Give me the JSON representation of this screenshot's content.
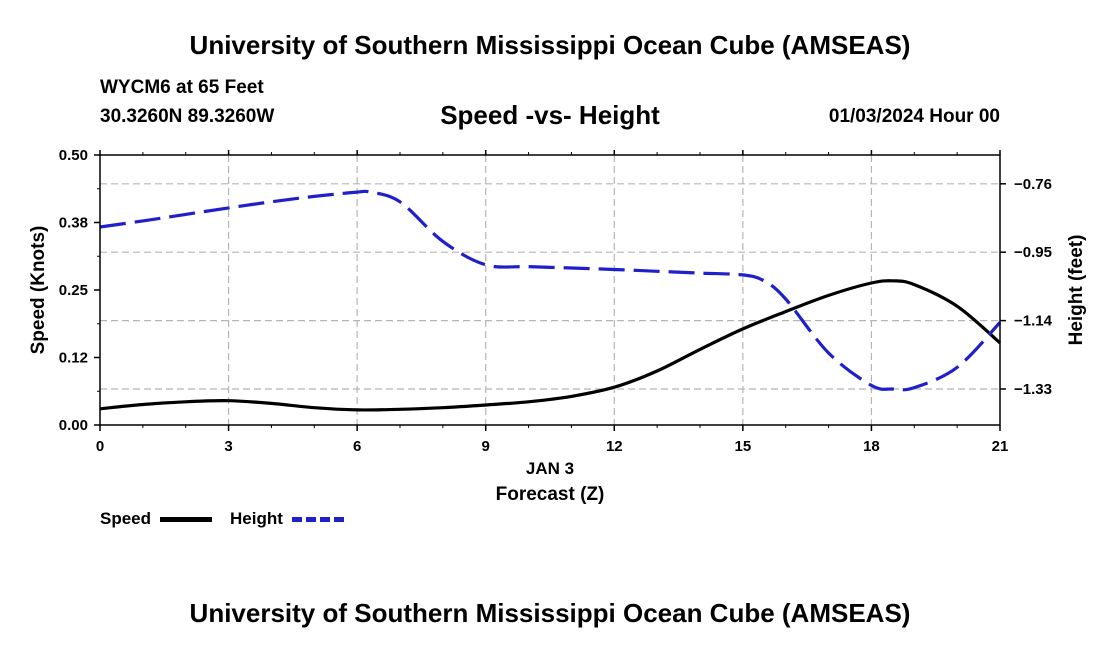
{
  "header": {
    "title": "University of Southern Mississippi Ocean Cube (AMSEAS)",
    "station": "WYCM6 at 65 Feet",
    "coordinates": "30.3260N  89.3260W",
    "date_hour": "01/03/2024 Hour 00"
  },
  "footer": {
    "title": "University of Southern Mississippi Ocean Cube (AMSEAS)"
  },
  "chart_data": {
    "type": "line",
    "title": "Speed -vs- Height",
    "xlabel_date": "JAN 3",
    "xlabel": "Forecast (Z)",
    "ylabel": "Speed (Knots)",
    "y2label": "Height (feet)",
    "xlim": [
      0,
      21
    ],
    "ylim": [
      0,
      0.5
    ],
    "y2lim": [
      -1.43,
      -0.68
    ],
    "x_ticks": [
      0,
      3,
      6,
      9,
      12,
      15,
      18,
      21
    ],
    "x_tick_labels": [
      "0",
      "3",
      "6",
      "9",
      "12",
      "15",
      "18",
      "21"
    ],
    "y_ticks": [
      0,
      0.125,
      0.25,
      0.375,
      0.5
    ],
    "y_tick_labels": [
      "0.00",
      "0.12",
      "0.25",
      "0.38",
      "0.50"
    ],
    "y2_ticks": [
      -0.76,
      -0.95,
      -1.14,
      -1.33
    ],
    "y2_tick_labels": [
      "−0.76",
      "−0.95",
      "−1.14",
      "−1.33"
    ],
    "grid": true,
    "series": [
      {
        "name": "Speed",
        "axis": "left",
        "color": "#000000",
        "dash": "solid",
        "x": [
          0,
          1,
          2,
          3,
          4,
          5,
          6,
          7,
          8,
          9,
          10,
          11,
          12,
          13,
          14,
          15,
          16,
          17,
          18,
          18.5,
          19,
          20,
          21
        ],
        "values": [
          0.03,
          0.038,
          0.043,
          0.045,
          0.04,
          0.032,
          0.028,
          0.029,
          0.032,
          0.037,
          0.043,
          0.053,
          0.07,
          0.1,
          0.14,
          0.178,
          0.21,
          0.24,
          0.263,
          0.267,
          0.26,
          0.22,
          0.152
        ]
      },
      {
        "name": "Height",
        "axis": "right",
        "color": "#1f1fcc",
        "dash": "dashed",
        "x": [
          0,
          1,
          2,
          3,
          4,
          5,
          6,
          6.3,
          7,
          8,
          9,
          10,
          11,
          12,
          13,
          14,
          15,
          15.5,
          16,
          17,
          18,
          18.5,
          19,
          20,
          21
        ],
        "values": [
          -0.88,
          -0.863,
          -0.845,
          -0.827,
          -0.81,
          -0.795,
          -0.783,
          -0.783,
          -0.81,
          -0.92,
          -0.985,
          -0.99,
          -0.994,
          -0.998,
          -1.003,
          -1.008,
          -1.013,
          -1.03,
          -1.08,
          -1.23,
          -1.32,
          -1.33,
          -1.326,
          -1.27,
          -1.145
        ]
      }
    ],
    "legend": [
      {
        "label": "Speed",
        "color": "#000000",
        "dash": "solid"
      },
      {
        "label": "Height",
        "color": "#1f1fcc",
        "dash": "dashed"
      }
    ]
  }
}
